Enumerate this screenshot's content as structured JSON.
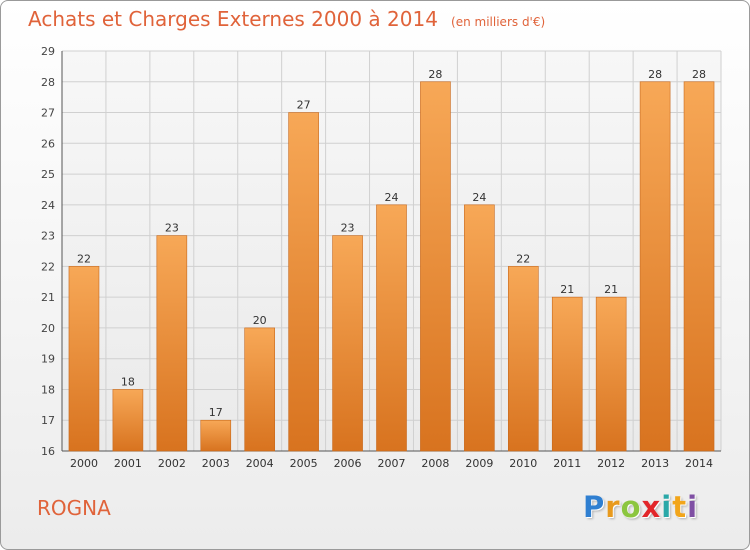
{
  "title": "Achats et Charges Externes 2000 à 2014",
  "unit_note": "(en milliers d'€)",
  "commune": "ROGNA",
  "logo": {
    "text": "Proxiti",
    "letters": [
      "P",
      "r",
      "o",
      "x",
      "i",
      "t",
      "i"
    ]
  },
  "colors": {
    "title": "#e0633a",
    "bar_light": "#f7a857",
    "bar_dark": "#d8731f",
    "grid": "#d0d0d0"
  },
  "chart_data": {
    "type": "bar",
    "title": "Achats et Charges Externes 2000 à 2014",
    "xlabel": "",
    "ylabel": "",
    "ylim": [
      16,
      29
    ],
    "yticks": [
      16,
      17,
      18,
      19,
      20,
      21,
      22,
      23,
      24,
      25,
      26,
      27,
      28,
      29
    ],
    "grid": true,
    "categories": [
      "2000",
      "2001",
      "2002",
      "2003",
      "2004",
      "2005",
      "2006",
      "2007",
      "2008",
      "2009",
      "2010",
      "2011",
      "2012",
      "2013",
      "2014"
    ],
    "values": [
      22,
      18,
      23,
      17,
      20,
      27,
      23,
      24,
      28,
      24,
      22,
      21,
      21,
      28,
      28
    ]
  }
}
